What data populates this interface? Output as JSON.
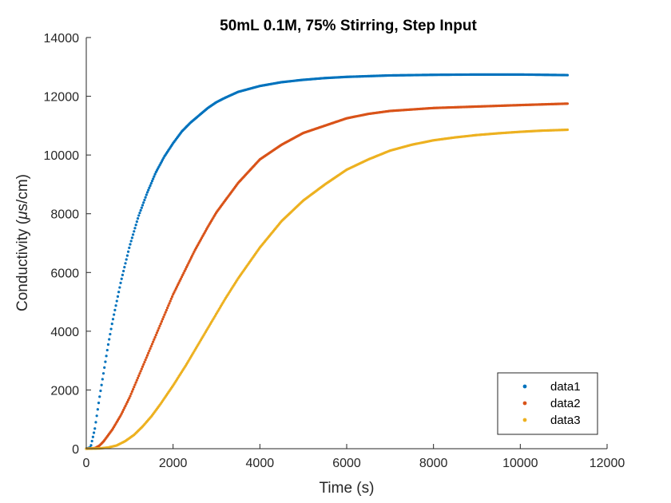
{
  "chart_data": {
    "type": "scatter",
    "title": "50mL 0.1M, 75% Stirring, Step Input",
    "xlabel": "Time (s)",
    "ylabel_prefix": "Conductivity (",
    "ylabel_mu": "μ",
    "ylabel_suffix": "s/cm)",
    "xlim": [
      0,
      12000
    ],
    "ylim": [
      0,
      14000
    ],
    "x_ticks": [
      0,
      2000,
      4000,
      6000,
      8000,
      10000,
      12000
    ],
    "y_ticks": [
      0,
      2000,
      4000,
      6000,
      8000,
      10000,
      12000,
      14000
    ],
    "x_tick_labels": [
      "0",
      "2000",
      "4000",
      "6000",
      "8000",
      "10000",
      "12000"
    ],
    "y_tick_labels": [
      "0",
      "2000",
      "4000",
      "6000",
      "8000",
      "10000",
      "12000",
      "14000"
    ],
    "grid": false,
    "legend_position": "bottom-right",
    "series": [
      {
        "name": "data1",
        "color": "#0072BD",
        "x": [
          0,
          100,
          200,
          300,
          400,
          500,
          600,
          800,
          1000,
          1200,
          1400,
          1600,
          1800,
          2000,
          2200,
          2400,
          2600,
          2800,
          3000,
          3200,
          3500,
          4000,
          4500,
          5000,
          5500,
          6000,
          7000,
          8000,
          9000,
          10000,
          11100
        ],
        "y": [
          0,
          50,
          700,
          1700,
          2600,
          3500,
          4300,
          5700,
          6900,
          7900,
          8700,
          9400,
          9950,
          10400,
          10800,
          11100,
          11350,
          11600,
          11800,
          11950,
          12150,
          12350,
          12480,
          12560,
          12620,
          12660,
          12710,
          12730,
          12740,
          12740,
          12720
        ]
      },
      {
        "name": "data2",
        "color": "#D95319",
        "x": [
          0,
          200,
          300,
          400,
          600,
          800,
          1000,
          1200,
          1400,
          1600,
          1800,
          2000,
          2200,
          2500,
          2800,
          3000,
          3500,
          4000,
          4500,
          5000,
          5500,
          6000,
          6500,
          7000,
          8000,
          9000,
          10000,
          11100
        ],
        "y": [
          0,
          20,
          100,
          250,
          650,
          1150,
          1750,
          2450,
          3150,
          3850,
          4550,
          5250,
          5850,
          6750,
          7550,
          8050,
          9050,
          9850,
          10350,
          10750,
          11000,
          11250,
          11400,
          11500,
          11600,
          11650,
          11700,
          11750
        ]
      },
      {
        "name": "data3",
        "color": "#EDB120",
        "x": [
          0,
          300,
          500,
          700,
          900,
          1100,
          1300,
          1500,
          1700,
          2000,
          2300,
          2600,
          2900,
          3200,
          3500,
          4000,
          4500,
          5000,
          5500,
          6000,
          6500,
          7000,
          7500,
          8000,
          8500,
          9000,
          9500,
          10000,
          10500,
          11100
        ],
        "y": [
          0,
          10,
          40,
          110,
          260,
          470,
          760,
          1100,
          1500,
          2150,
          2850,
          3600,
          4350,
          5100,
          5800,
          6850,
          7750,
          8450,
          9000,
          9500,
          9850,
          10150,
          10350,
          10500,
          10600,
          10680,
          10740,
          10790,
          10830,
          10860
        ]
      }
    ]
  }
}
